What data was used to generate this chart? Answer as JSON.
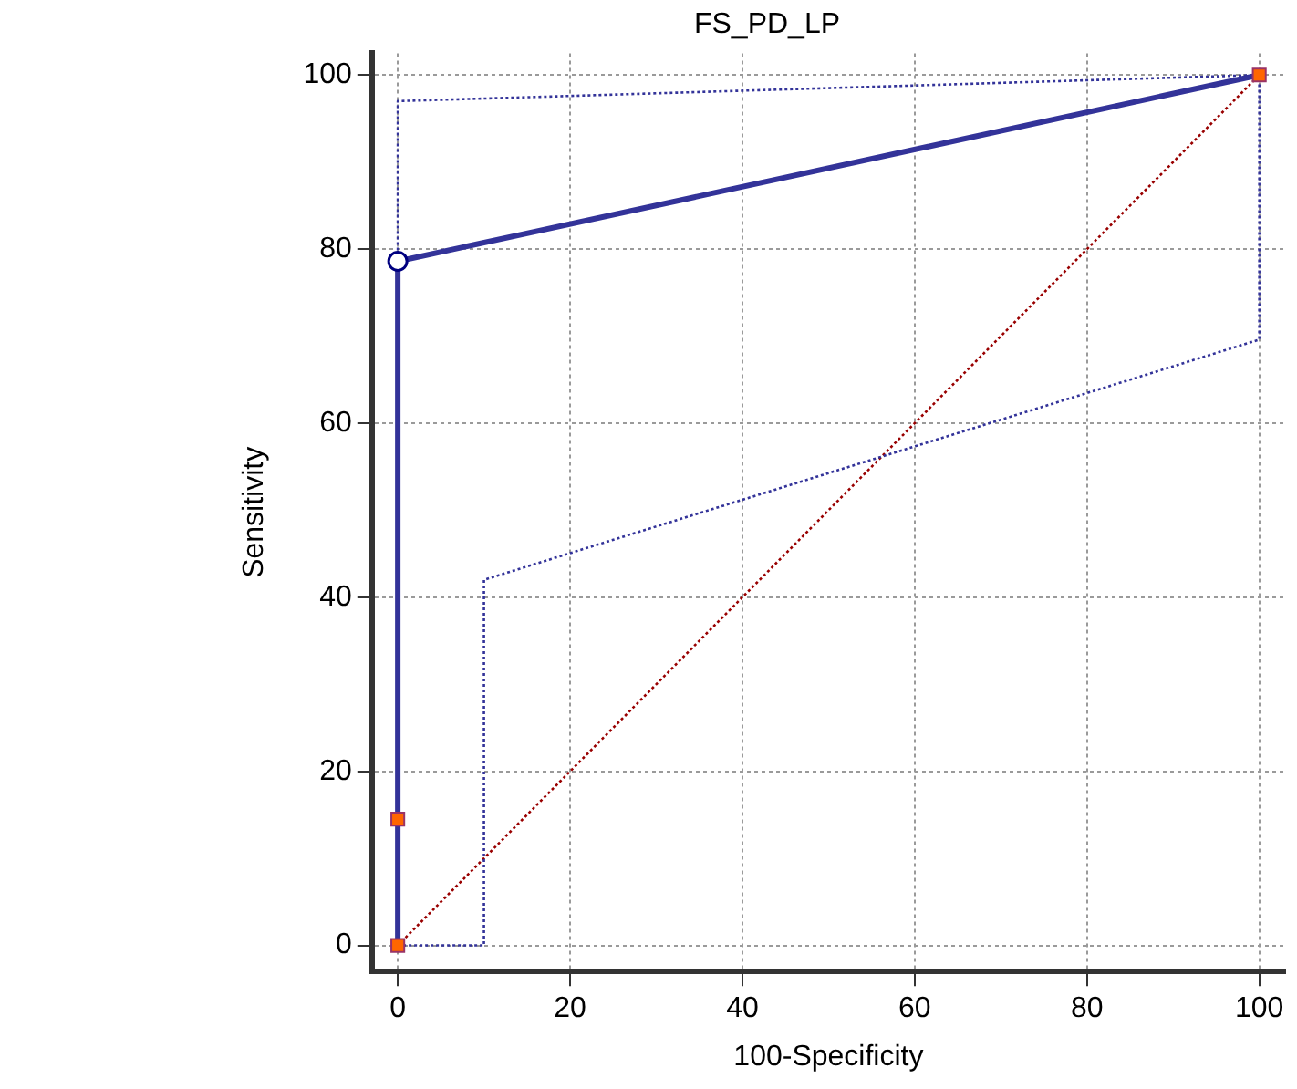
{
  "chart_data": {
    "type": "line",
    "title": "FS_PD_LP",
    "xlabel": "100-Specificity",
    "ylabel": "Sensitivity",
    "xlim": [
      -3,
      103
    ],
    "ylim": [
      -3,
      102.5
    ],
    "xticks": [
      0,
      20,
      40,
      60,
      80,
      100
    ],
    "yticks": [
      0,
      20,
      40,
      60,
      80,
      100
    ],
    "grid": true,
    "legend": false,
    "series": [
      {
        "color": "#990000",
        "line_style": "dotted",
        "marker": "none",
        "x": [
          0,
          100
        ],
        "values": [
          0,
          100
        ]
      },
      {
        "color": "#333399",
        "line_style": "dotted",
        "marker": "none",
        "x": [
          0,
          0,
          100
        ],
        "values": [
          0,
          97,
          100
        ]
      },
      {
        "color": "#333399",
        "line_style": "dotted",
        "marker": "none",
        "x": [
          0,
          10,
          10,
          100,
          100
        ],
        "values": [
          0,
          0,
          42,
          69.6,
          100
        ]
      },
      {
        "color": "#333399",
        "line_style": "solid",
        "marker": "square",
        "colors": [
          "#ff6600",
          "#ff6600",
          "#ff6600",
          "#ff6600"
        ],
        "x": [
          0,
          0,
          0,
          100
        ],
        "values": [
          0,
          14.5,
          78.6,
          100
        ]
      },
      {
        "type": "scatter",
        "color": "#ffffff",
        "marker": "circle",
        "x": [
          0
        ],
        "values": [
          78.6
        ]
      }
    ]
  }
}
